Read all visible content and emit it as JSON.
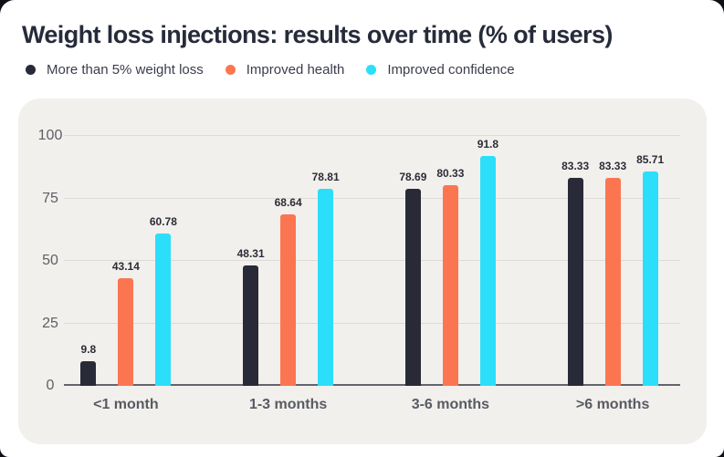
{
  "title": "Weight loss injections: results over time (% of users)",
  "legend": [
    {
      "label": "More than 5% weight loss",
      "color": "#282b37"
    },
    {
      "label": "Improved health",
      "color": "#fb7650"
    },
    {
      "label": "Improved confidence",
      "color": "#2bdffa"
    }
  ],
  "colors": {
    "card_background": "#ffffff",
    "panel_background": "#f2f0ed",
    "gridline": "#dedbd6",
    "axis_line": "#63646c",
    "title_text": "#262b3a",
    "tick_text": "#5d5f66",
    "value_label_text": "#2b2d37"
  },
  "chart_data": {
    "type": "bar",
    "title": "Weight loss injections: results over time (% of users)",
    "categories": [
      "<1 month",
      "1-3 months",
      "3-6 months",
      ">6 months"
    ],
    "series": [
      {
        "name": "More than 5% weight loss",
        "color": "#282b37",
        "values": [
          9.8,
          48.31,
          78.69,
          83.33
        ]
      },
      {
        "name": "Improved health",
        "color": "#fb7650",
        "values": [
          43.14,
          68.64,
          80.33,
          83.33
        ]
      },
      {
        "name": "Improved confidence",
        "color": "#2bdffa",
        "values": [
          60.78,
          78.81,
          91.8,
          85.71
        ]
      }
    ],
    "yticks": [
      0,
      25,
      50,
      75,
      100
    ],
    "ylim": [
      0,
      100
    ],
    "xlabel": "",
    "ylabel": "",
    "grid": true,
    "legend_position": "top-left",
    "value_labels": true
  }
}
